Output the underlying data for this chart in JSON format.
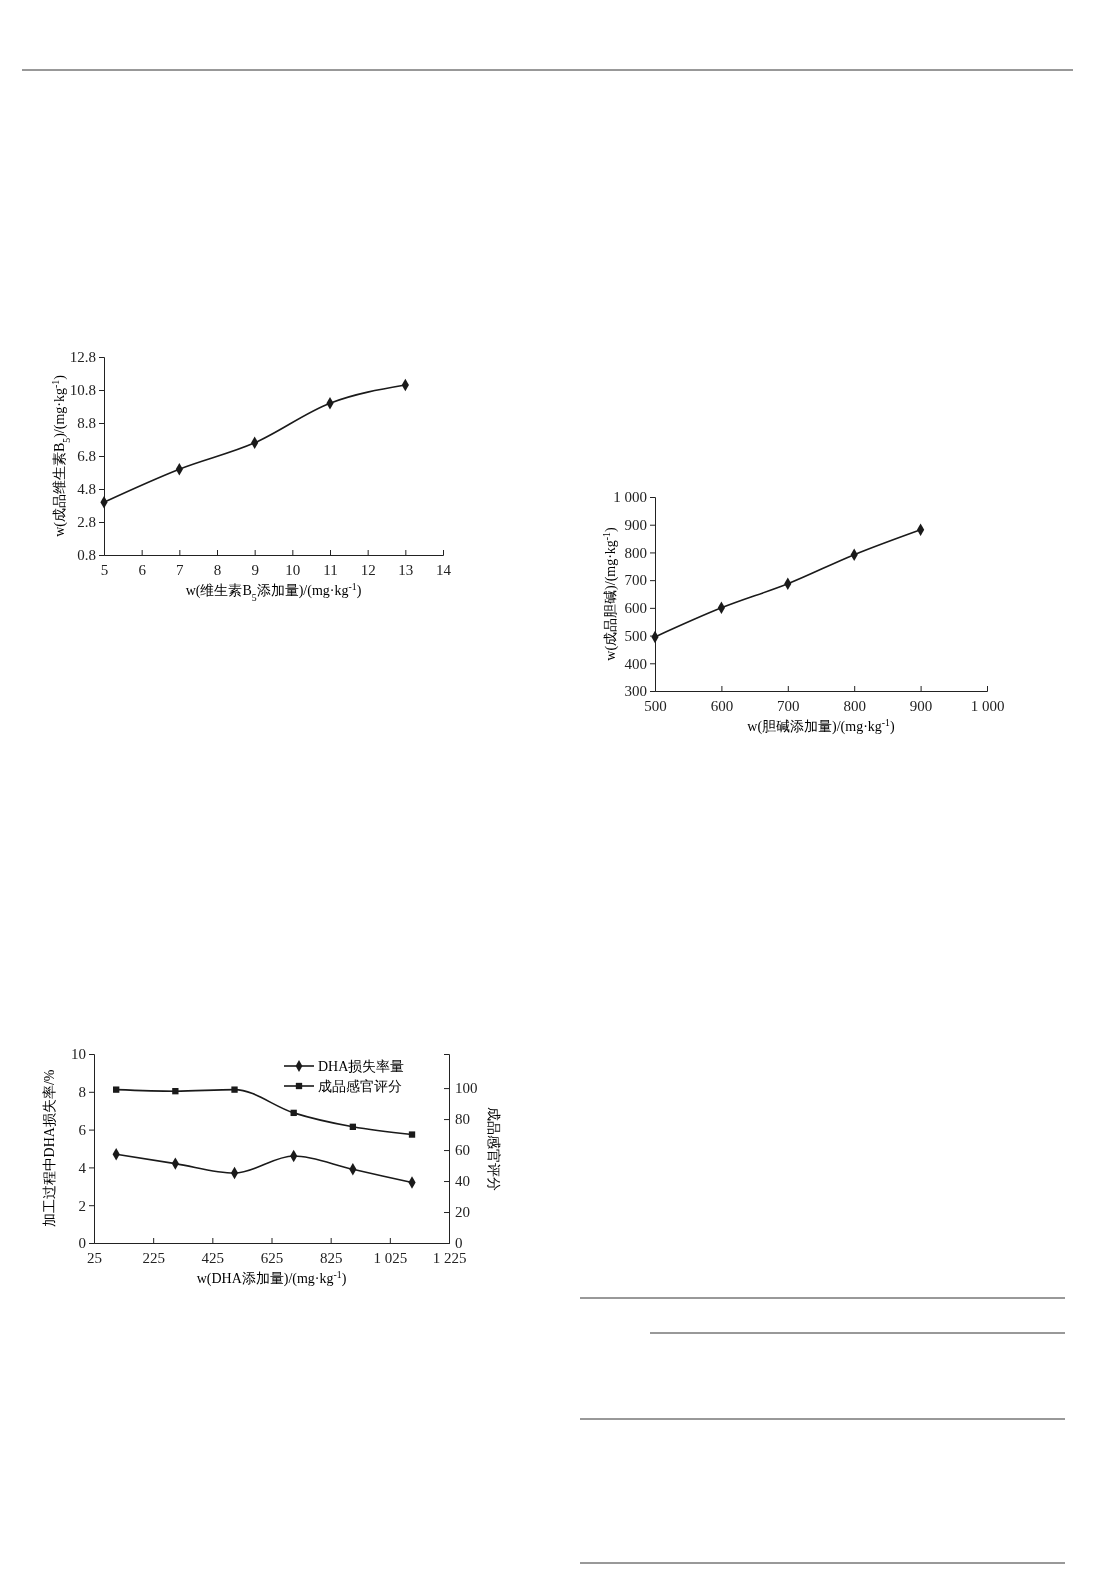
{
  "chart_data": [
    {
      "type": "line",
      "xlabel": "w(维生素B$_{5}$添加量)/(mg·kg$^{-1}$)",
      "ylabel": "w(成品维生素B$_{5}$)/(mg·kg$^{-1}$)",
      "xlim": [
        5,
        14
      ],
      "xticks": [
        5,
        6,
        7,
        8,
        9,
        10,
        11,
        12,
        13,
        14
      ],
      "ylim": [
        0.8,
        12.8
      ],
      "yticks": [
        0.8,
        2.8,
        4.8,
        6.8,
        8.8,
        10.8,
        12.8
      ],
      "grid": false,
      "legend": false,
      "marker": "diamond",
      "line_style": "solid",
      "series": [
        {
          "color": "#1a1a1a",
          "x": [
            5,
            7,
            9,
            11,
            13
          ],
          "values": [
            4.0,
            6.0,
            7.6,
            10.0,
            11.1
          ]
        }
      ]
    },
    {
      "type": "line",
      "xlabel": "w(胆碱添加量)/(mg·kg$^{-1}$)",
      "ylabel": "w(成品胆碱)/(mg·kg$^{-1}$)",
      "xlim": [
        500,
        1000
      ],
      "xticks": [
        500,
        600,
        700,
        800,
        900,
        {
          "value": 1000,
          "label": "1 000"
        }
      ],
      "ylim": [
        300,
        1000
      ],
      "yticks": [
        300,
        400,
        500,
        600,
        700,
        800,
        900,
        {
          "value": 1000,
          "label": "1 000"
        }
      ],
      "grid": false,
      "legend": false,
      "marker": "diamond",
      "line_style": "solid",
      "series": [
        {
          "color": "#1a1a1a",
          "x": [
            500,
            600,
            700,
            800,
            900
          ],
          "values": [
            495,
            600,
            687,
            792,
            882
          ]
        }
      ]
    },
    {
      "type": "line",
      "xlabel": "w(DHA添加量)/(mg·kg$^{-1}$)",
      "ylabel": "加工过程中DHA损失率/%",
      "y2label": "成品感官评分",
      "xlim": [
        25,
        1225
      ],
      "xticks": [
        25,
        225,
        425,
        625,
        825,
        {
          "value": 1025,
          "label": "1 025"
        },
        {
          "value": 1225,
          "label": "1 225"
        }
      ],
      "ylim": [
        0,
        10
      ],
      "yticks": [
        0,
        2,
        4,
        6,
        8,
        10
      ],
      "y2lim": [
        0,
        122
      ],
      "y2ticks": [
        0,
        20,
        40,
        60,
        80,
        100
      ],
      "grid": false,
      "legend": "top right",
      "line_style": "solid",
      "series": [
        {
          "name": "DHA损失率量",
          "color": "#1a1a1a",
          "marker": "diamond",
          "x": [
            100,
            300,
            500,
            700,
            900,
            1100
          ],
          "values": [
            4.7,
            4.2,
            3.7,
            4.6,
            3.9,
            3.2
          ]
        },
        {
          "name": "成品感官评分",
          "color": "#1a1a1a",
          "marker": "square",
          "axis": "y2",
          "x": [
            100,
            300,
            500,
            700,
            900,
            1100
          ],
          "values": [
            99,
            98,
            99,
            84,
            75,
            70
          ]
        }
      ]
    }
  ]
}
